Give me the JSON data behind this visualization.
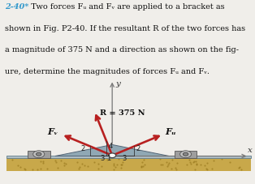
{
  "bg_color": "#f0eeea",
  "text_color": "#111111",
  "problem_number_color": "#3399cc",
  "title_lines": [
    "2-40*  Two forces Fᵤ and Fᵥ are applied to a bracket as",
    "shown in Fig. P2-40. If the resultant R of the two forces has",
    "a magnitude of 375 N and a direction as shown on the fig-",
    "ure, determine the magnitudes of forces Fᵤ and Fᵥ."
  ],
  "arrow_color": "#b82020",
  "axis_color": "#777777",
  "R_label": "R = 375 N",
  "Fv_label": "Fᵥ",
  "Fu_label": "Fᵤ",
  "axis_x_label": "x",
  "axis_y_label": "y",
  "R_vec": [
    -1,
    4
  ],
  "Fv_vec": [
    -3,
    2
  ],
  "Fu_vec": [
    3,
    2
  ]
}
